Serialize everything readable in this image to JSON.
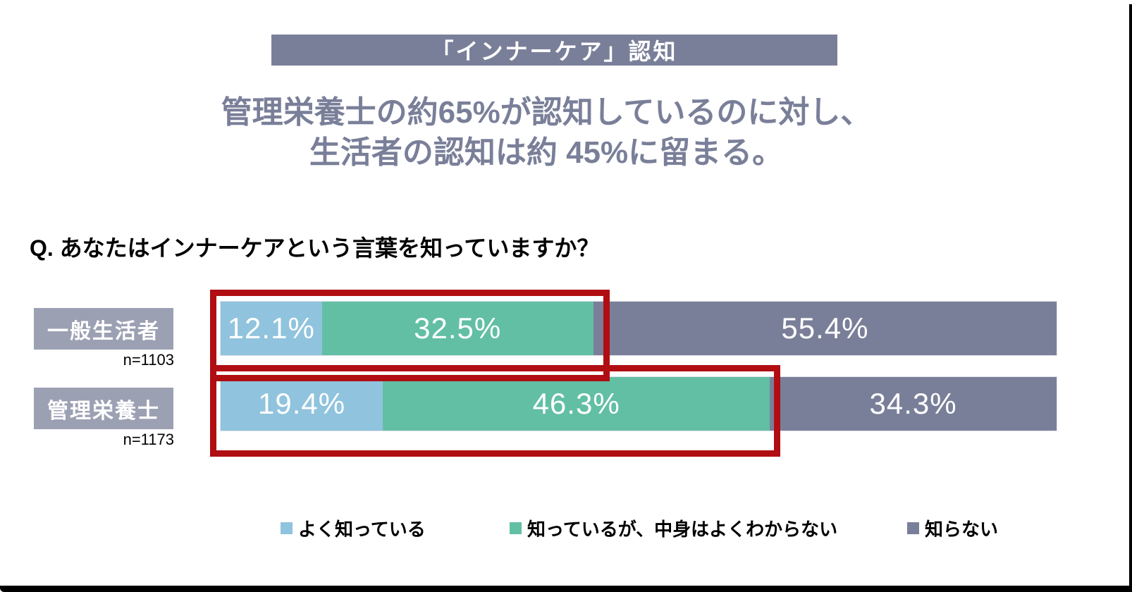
{
  "banner": {
    "title": "「インナーケア」認知"
  },
  "headline": {
    "line1": "管理栄養士の約65%が認知しているのに対し、",
    "line2": "生活者の認知は約 45%に留まる。"
  },
  "question": "Q. あなたはインナーケアという言葉を知っていますか？",
  "chart_data": {
    "type": "bar",
    "orientation": "horizontal",
    "stacked": true,
    "xlim": [
      0,
      100
    ],
    "categories": [
      "一般生活者",
      "管理栄養士"
    ],
    "sample_sizes": [
      "n=1103",
      "n=1173"
    ],
    "series": [
      {
        "name": "よく知っている",
        "color": "#90c3dd",
        "values": [
          12.1,
          19.4
        ]
      },
      {
        "name": "知っているが、中身はよくわからない",
        "color": "#62bfa3",
        "values": [
          32.5,
          46.3
        ]
      },
      {
        "name": "知らない",
        "color": "#7a7f99",
        "values": [
          55.4,
          34.3
        ]
      }
    ],
    "value_labels": [
      [
        "12.1%",
        "32.5%",
        "55.4%"
      ],
      [
        "19.4%",
        "46.3%",
        "34.3%"
      ]
    ],
    "annotations": [
      {
        "type": "highlight-box",
        "row": "一般生活者",
        "covers": "よく知っている + 知っているが、中身はよくわからない (44.6%)",
        "color": "#b00e12"
      },
      {
        "type": "highlight-box",
        "row": "管理栄養士",
        "covers": "よく知っている + 知っているが、中身はよくわからない (65.7%)",
        "color": "#b00e12"
      }
    ],
    "legend_position": "bottom"
  },
  "colors": {
    "banner_bg": "#7a7f99",
    "headline_text": "#7a7f99",
    "category_box_bg": "#9ca0b3",
    "highlight_border": "#b00e12",
    "frame": "#000000"
  }
}
